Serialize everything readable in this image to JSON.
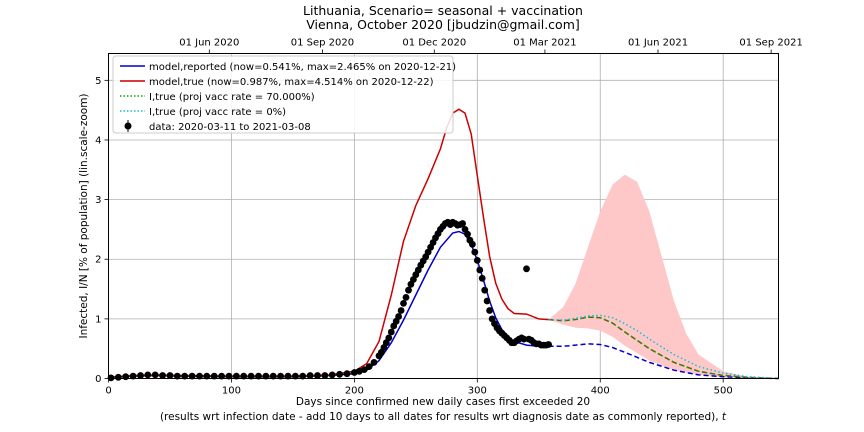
{
  "chart_data": {
    "type": "line",
    "title": "Lithuania, Scenario= seasonal + vaccination",
    "subtitle": "Vienna, October 2020 [jbudzin@gmail.com]",
    "xlabel": "Days since confirmed new daily cases first exceeded 20",
    "xlabel2": "(results wrt infection date - add 10 days to all dates for results wrt diagnosis date as commonly reported), ",
    "xlabel2_var": "t",
    "ylabel": "Infected, I/N [% of population] (lin.scale-zoom)",
    "xlim": [
      0,
      545
    ],
    "ylim": [
      0,
      5.45
    ],
    "grid": true,
    "legend_position": "top-left",
    "x_ticks": [
      0,
      100,
      200,
      300,
      400,
      500
    ],
    "y_ticks": [
      0,
      1,
      2,
      3,
      4,
      5
    ],
    "top_axis_ticks": [
      {
        "label": "01 Jun 2020",
        "x": 82
      },
      {
        "label": "01 Sep 2020",
        "x": 174
      },
      {
        "label": "01 Dec 2020",
        "x": 265
      },
      {
        "label": "01 Mar 2021",
        "x": 355
      },
      {
        "label": "01 Jun 2021",
        "x": 447
      },
      {
        "label": "01 Sep 2021",
        "x": 539
      }
    ],
    "legend": [
      {
        "label": "model,reported (now=0.541%, max=2.465% on 2020-12-21)",
        "color": "#0000cc",
        "style": "solid"
      },
      {
        "label": "model,true (now=0.987%, max=4.514% on 2020-12-22)",
        "color": "#cc0000",
        "style": "solid"
      },
      {
        "label": "I,true (proj vacc rate = 70.000%)",
        "color": "#00aa00",
        "style": "dotted"
      },
      {
        "label": "I,true (proj vacc rate = 0%)",
        "color": "#17becf",
        "style": "dotted"
      },
      {
        "label": "data: 2020-03-11 to 2021-03-08",
        "color": "#000000",
        "style": "marker"
      }
    ],
    "series": [
      {
        "name": "model,reported (now=0.541%, max=2.465% on 2020-12-21)",
        "color": "#0000cc",
        "points": [
          [
            0,
            0.02
          ],
          [
            20,
            0.04
          ],
          [
            40,
            0.05
          ],
          [
            60,
            0.04
          ],
          [
            100,
            0.03
          ],
          [
            150,
            0.03
          ],
          [
            180,
            0.05
          ],
          [
            200,
            0.08
          ],
          [
            210,
            0.14
          ],
          [
            220,
            0.3
          ],
          [
            230,
            0.6
          ],
          [
            240,
            0.98
          ],
          [
            250,
            1.4
          ],
          [
            260,
            1.82
          ],
          [
            270,
            2.2
          ],
          [
            280,
            2.44
          ],
          [
            285,
            2.465
          ],
          [
            290,
            2.42
          ],
          [
            295,
            2.25
          ],
          [
            300,
            1.98
          ],
          [
            305,
            1.65
          ],
          [
            310,
            1.3
          ],
          [
            315,
            1.02
          ],
          [
            320,
            0.82
          ],
          [
            325,
            0.7
          ],
          [
            330,
            0.62
          ],
          [
            340,
            0.56
          ],
          [
            350,
            0.54
          ],
          [
            358,
            0.541
          ]
        ]
      },
      {
        "name": "model,true (now=0.987%, max=4.514% on 2020-12-22)",
        "color": "#cc0000",
        "points": [
          [
            0,
            0.02
          ],
          [
            20,
            0.05
          ],
          [
            40,
            0.06
          ],
          [
            60,
            0.05
          ],
          [
            100,
            0.04
          ],
          [
            150,
            0.04
          ],
          [
            180,
            0.06
          ],
          [
            200,
            0.12
          ],
          [
            210,
            0.25
          ],
          [
            220,
            0.62
          ],
          [
            230,
            1.4
          ],
          [
            240,
            2.3
          ],
          [
            250,
            2.9
          ],
          [
            260,
            3.35
          ],
          [
            270,
            3.85
          ],
          [
            275,
            4.2
          ],
          [
            280,
            4.45
          ],
          [
            285,
            4.514
          ],
          [
            290,
            4.45
          ],
          [
            295,
            4.1
          ],
          [
            300,
            3.4
          ],
          [
            305,
            2.7
          ],
          [
            310,
            2.05
          ],
          [
            315,
            1.6
          ],
          [
            320,
            1.33
          ],
          [
            325,
            1.17
          ],
          [
            330,
            1.09
          ],
          [
            340,
            1.08
          ],
          [
            350,
            1.0
          ],
          [
            358,
            0.987
          ]
        ]
      },
      {
        "name": "projection reported (proj)",
        "color": "#0000cc",
        "dashed": true,
        "points": [
          [
            358,
            0.541
          ],
          [
            370,
            0.54
          ],
          [
            380,
            0.56
          ],
          [
            390,
            0.58
          ],
          [
            400,
            0.57
          ],
          [
            410,
            0.52
          ],
          [
            420,
            0.44
          ],
          [
            440,
            0.27
          ],
          [
            460,
            0.14
          ],
          [
            480,
            0.06
          ],
          [
            500,
            0.03
          ],
          [
            520,
            0.01
          ],
          [
            545,
            0.0
          ]
        ]
      },
      {
        "name": "projection true (proj)",
        "color": "#8b4513",
        "dashed": true,
        "points": [
          [
            358,
            0.987
          ],
          [
            370,
            0.97
          ],
          [
            380,
            0.99
          ],
          [
            390,
            1.03
          ],
          [
            400,
            1.02
          ],
          [
            410,
            0.93
          ],
          [
            420,
            0.78
          ],
          [
            440,
            0.5
          ],
          [
            460,
            0.27
          ],
          [
            480,
            0.12
          ],
          [
            500,
            0.05
          ],
          [
            520,
            0.02
          ],
          [
            545,
            0.0
          ]
        ]
      },
      {
        "name": "I,true (proj vacc rate = 70.000%)",
        "color": "#00aa00",
        "dotted": true,
        "points": [
          [
            358,
            0.987
          ],
          [
            370,
            0.97
          ],
          [
            380,
            0.99
          ],
          [
            390,
            1.03
          ],
          [
            400,
            1.02
          ],
          [
            410,
            0.93
          ],
          [
            420,
            0.78
          ],
          [
            440,
            0.5
          ],
          [
            460,
            0.27
          ],
          [
            480,
            0.12
          ],
          [
            500,
            0.05
          ],
          [
            520,
            0.02
          ],
          [
            545,
            0.0
          ]
        ]
      },
      {
        "name": "I,true (proj vacc rate = 0%)",
        "color": "#17becf",
        "dotted": true,
        "points": [
          [
            358,
            0.987
          ],
          [
            370,
            0.98
          ],
          [
            380,
            1.01
          ],
          [
            390,
            1.05
          ],
          [
            400,
            1.06
          ],
          [
            410,
            1.02
          ],
          [
            420,
            0.92
          ],
          [
            430,
            0.8
          ],
          [
            440,
            0.66
          ],
          [
            460,
            0.4
          ],
          [
            480,
            0.2
          ],
          [
            500,
            0.09
          ],
          [
            520,
            0.03
          ],
          [
            545,
            0.0
          ]
        ]
      }
    ],
    "band": {
      "color": "#ffc8c8",
      "upper": [
        [
          358,
          0.987
        ],
        [
          370,
          1.2
        ],
        [
          380,
          1.6
        ],
        [
          390,
          2.2
        ],
        [
          400,
          2.8
        ],
        [
          410,
          3.25
        ],
        [
          420,
          3.42
        ],
        [
          430,
          3.3
        ],
        [
          440,
          2.8
        ],
        [
          450,
          2.05
        ],
        [
          460,
          1.3
        ],
        [
          470,
          0.75
        ],
        [
          480,
          0.4
        ],
        [
          500,
          0.12
        ],
        [
          520,
          0.03
        ],
        [
          545,
          0.0
        ]
      ],
      "lower": [
        [
          358,
          0.987
        ],
        [
          370,
          0.9
        ],
        [
          380,
          0.85
        ],
        [
          390,
          0.84
        ],
        [
          400,
          0.8
        ],
        [
          410,
          0.7
        ],
        [
          420,
          0.55
        ],
        [
          440,
          0.3
        ],
        [
          460,
          0.14
        ],
        [
          480,
          0.06
        ],
        [
          500,
          0.02
        ],
        [
          545,
          0.0
        ]
      ]
    },
    "data_points": {
      "color": "#000000",
      "points": [
        [
          2,
          0.01
        ],
        [
          8,
          0.02
        ],
        [
          14,
          0.03
        ],
        [
          20,
          0.04
        ],
        [
          26,
          0.05
        ],
        [
          32,
          0.06
        ],
        [
          38,
          0.06
        ],
        [
          44,
          0.05
        ],
        [
          50,
          0.05
        ],
        [
          56,
          0.04
        ],
        [
          62,
          0.04
        ],
        [
          68,
          0.04
        ],
        [
          74,
          0.04
        ],
        [
          80,
          0.04
        ],
        [
          86,
          0.04
        ],
        [
          92,
          0.04
        ],
        [
          98,
          0.04
        ],
        [
          104,
          0.04
        ],
        [
          110,
          0.04
        ],
        [
          116,
          0.04
        ],
        [
          122,
          0.04
        ],
        [
          128,
          0.04
        ],
        [
          134,
          0.04
        ],
        [
          140,
          0.04
        ],
        [
          146,
          0.04
        ],
        [
          152,
          0.04
        ],
        [
          158,
          0.04
        ],
        [
          164,
          0.05
        ],
        [
          170,
          0.05
        ],
        [
          176,
          0.05
        ],
        [
          182,
          0.06
        ],
        [
          188,
          0.07
        ],
        [
          194,
          0.08
        ],
        [
          200,
          0.1
        ],
        [
          204,
          0.12
        ],
        [
          208,
          0.15
        ],
        [
          212,
          0.2
        ],
        [
          216,
          0.27
        ],
        [
          220,
          0.38
        ],
        [
          222,
          0.44
        ],
        [
          224,
          0.52
        ],
        [
          226,
          0.6
        ],
        [
          228,
          0.68
        ],
        [
          230,
          0.78
        ],
        [
          232,
          0.88
        ],
        [
          234,
          0.96
        ],
        [
          236,
          1.04
        ],
        [
          238,
          1.14
        ],
        [
          240,
          1.26
        ],
        [
          242,
          1.36
        ],
        [
          244,
          1.48
        ],
        [
          246,
          1.58
        ],
        [
          248,
          1.66
        ],
        [
          250,
          1.74
        ],
        [
          252,
          1.82
        ],
        [
          254,
          1.9
        ],
        [
          256,
          1.97
        ],
        [
          258,
          2.04
        ],
        [
          260,
          2.12
        ],
        [
          262,
          2.2
        ],
        [
          264,
          2.28
        ],
        [
          266,
          2.36
        ],
        [
          268,
          2.43
        ],
        [
          270,
          2.5
        ],
        [
          272,
          2.55
        ],
        [
          274,
          2.6
        ],
        [
          276,
          2.62
        ],
        [
          278,
          2.58
        ],
        [
          280,
          2.62
        ],
        [
          282,
          2.6
        ],
        [
          284,
          2.57
        ],
        [
          286,
          2.58
        ],
        [
          288,
          2.6
        ],
        [
          290,
          2.5
        ],
        [
          292,
          2.42
        ],
        [
          294,
          2.32
        ],
        [
          296,
          2.25
        ],
        [
          298,
          2.12
        ],
        [
          300,
          1.98
        ],
        [
          302,
          1.82
        ],
        [
          304,
          1.68
        ],
        [
          306,
          1.48
        ],
        [
          308,
          1.3
        ],
        [
          310,
          1.14
        ],
        [
          312,
          1.0
        ],
        [
          314,
          0.92
        ],
        [
          316,
          0.85
        ],
        [
          318,
          0.8
        ],
        [
          320,
          0.76
        ],
        [
          322,
          0.72
        ],
        [
          324,
          0.68
        ],
        [
          326,
          0.64
        ],
        [
          328,
          0.6
        ],
        [
          330,
          0.6
        ],
        [
          332,
          0.63
        ],
        [
          334,
          0.66
        ],
        [
          336,
          0.68
        ],
        [
          338,
          0.66
        ],
        [
          340,
          1.84
        ],
        [
          342,
          0.66
        ],
        [
          344,
          0.64
        ],
        [
          346,
          0.6
        ],
        [
          348,
          0.58
        ],
        [
          350,
          0.58
        ],
        [
          352,
          0.56
        ],
        [
          354,
          0.56
        ],
        [
          356,
          0.56
        ],
        [
          358,
          0.57
        ]
      ]
    }
  }
}
